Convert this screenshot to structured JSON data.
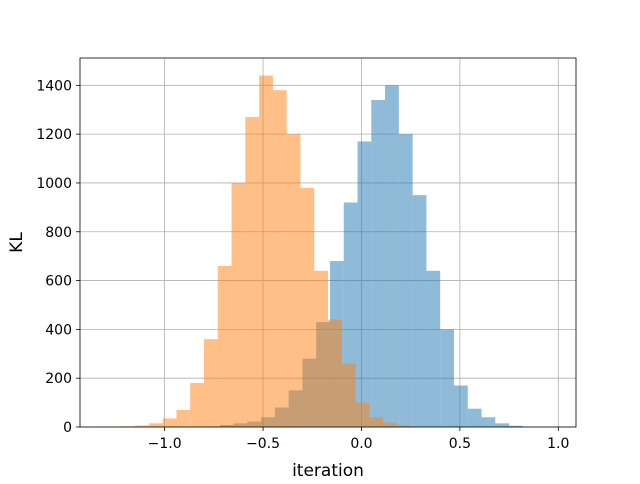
{
  "chart_data": {
    "type": "bar",
    "title": "",
    "xlabel": "iteration",
    "ylabel": "KL",
    "xlim": [
      -1.43,
      1.09
    ],
    "ylim": [
      0,
      1512
    ],
    "grid": true,
    "legend": false,
    "x_ticks": [
      -1.0,
      -0.5,
      0.0,
      0.5,
      1.0
    ],
    "x_tick_labels": [
      "−1.0",
      "−0.5",
      "0.0",
      "0.5",
      "1.0"
    ],
    "y_ticks": [
      0,
      200,
      400,
      600,
      800,
      1000,
      1200,
      1400
    ],
    "y_tick_labels": [
      "0",
      "200",
      "400",
      "600",
      "800",
      "1000",
      "1200",
      "1400"
    ],
    "series": [
      {
        "color": "#1f77b4",
        "opacity": 0.5,
        "bin_edges": [
          -0.79,
          -0.72,
          -0.65,
          -0.58,
          -0.51,
          -0.44,
          -0.37,
          -0.3,
          -0.23,
          -0.16,
          -0.09,
          -0.02,
          0.05,
          0.12,
          0.19,
          0.26,
          0.33,
          0.4,
          0.47,
          0.54,
          0.61,
          0.68,
          0.75,
          0.82
        ],
        "counts": [
          2,
          8,
          15,
          22,
          40,
          80,
          150,
          280,
          430,
          680,
          920,
          1170,
          1340,
          1400,
          1200,
          950,
          640,
          400,
          170,
          75,
          40,
          15,
          5
        ]
      },
      {
        "color": "#ff7f0e",
        "opacity": 0.5,
        "bin_edges": [
          -1.36,
          -1.29,
          -1.22,
          -1.15,
          -1.08,
          -1.01,
          -0.94,
          -0.87,
          -0.8,
          -0.73,
          -0.66,
          -0.59,
          -0.52,
          -0.45,
          -0.38,
          -0.31,
          -0.24,
          -0.17,
          -0.1,
          -0.03,
          0.04,
          0.11,
          0.18,
          0.25,
          0.32
        ],
        "counts": [
          1,
          2,
          3,
          6,
          15,
          35,
          70,
          180,
          360,
          660,
          1000,
          1270,
          1440,
          1380,
          1200,
          980,
          640,
          440,
          260,
          100,
          40,
          18,
          6,
          2
        ]
      }
    ]
  }
}
